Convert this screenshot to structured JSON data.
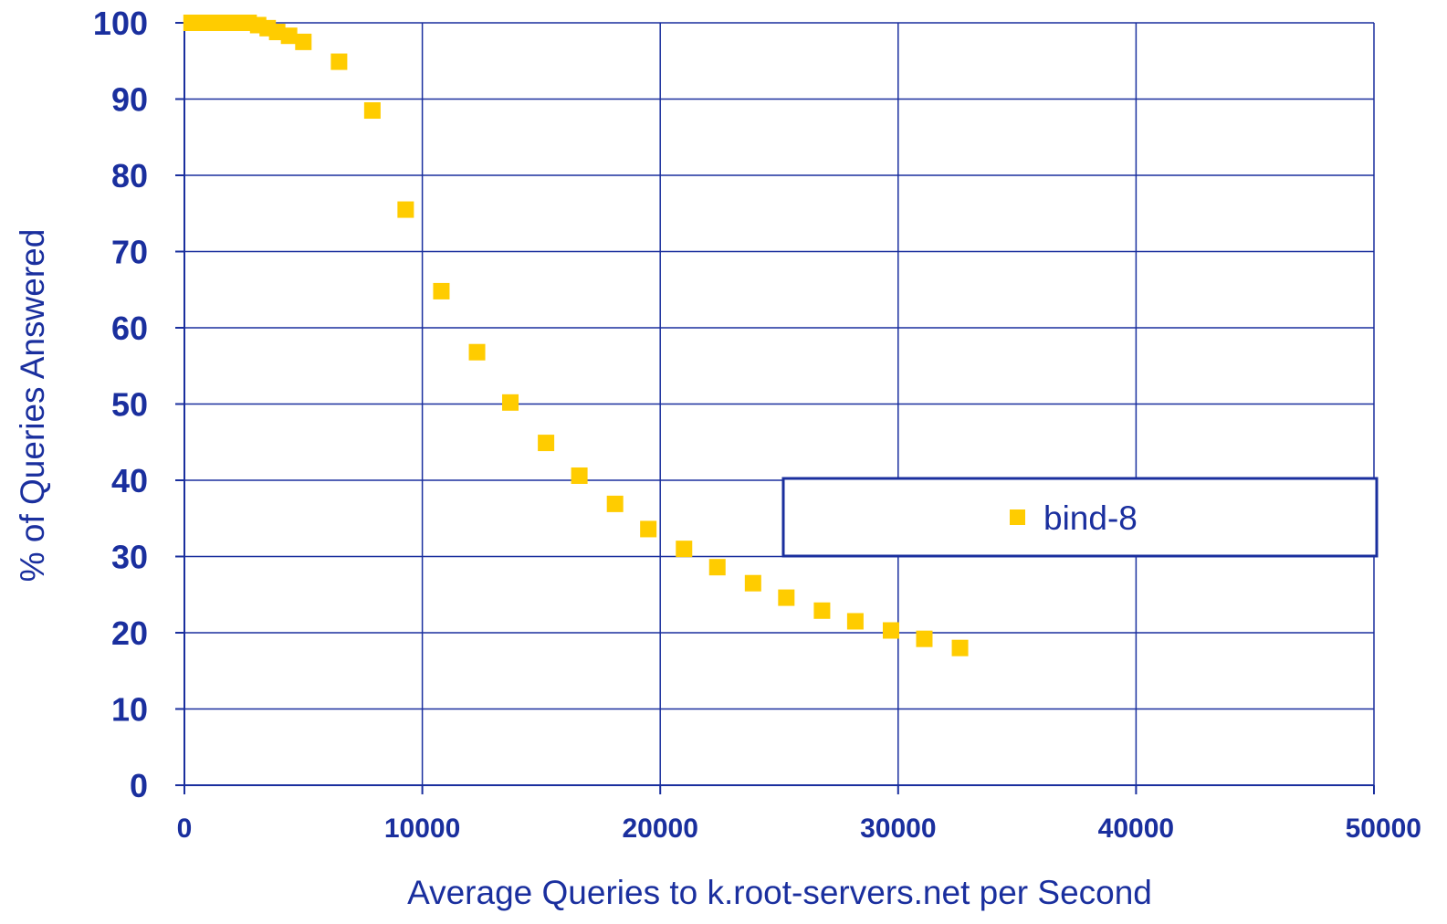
{
  "chart_data": {
    "type": "scatter",
    "title": "",
    "xlabel": "Average Queries to k.root-servers.net per Second",
    "ylabel": "% of Queries Answered",
    "xlim": [
      0,
      50000
    ],
    "ylim": [
      0,
      100
    ],
    "x_ticks": [
      "0",
      "10000",
      "20000",
      "30000",
      "40000",
      "50000"
    ],
    "y_ticks": [
      "0",
      "10",
      "20",
      "30",
      "40",
      "50",
      "60",
      "70",
      "80",
      "90",
      "100"
    ],
    "grid": true,
    "legend": {
      "placement": "center-right",
      "entries": [
        "bind-8"
      ]
    },
    "series": [
      {
        "name": "bind-8",
        "marker": "square",
        "color": "#FFCC00",
        "points": [
          {
            "x": 300,
            "y": 100
          },
          {
            "x": 600,
            "y": 100
          },
          {
            "x": 900,
            "y": 100
          },
          {
            "x": 1200,
            "y": 100
          },
          {
            "x": 1500,
            "y": 100
          },
          {
            "x": 1800,
            "y": 100
          },
          {
            "x": 2100,
            "y": 100
          },
          {
            "x": 2400,
            "y": 100
          },
          {
            "x": 2700,
            "y": 100
          },
          {
            "x": 3100,
            "y": 99.7
          },
          {
            "x": 3500,
            "y": 99.3
          },
          {
            "x": 3900,
            "y": 98.8
          },
          {
            "x": 4400,
            "y": 98.3
          },
          {
            "x": 5000,
            "y": 97.5
          },
          {
            "x": 6500,
            "y": 94.9
          },
          {
            "x": 7900,
            "y": 88.5
          },
          {
            "x": 9300,
            "y": 75.5
          },
          {
            "x": 10800,
            "y": 64.8
          },
          {
            "x": 12300,
            "y": 56.8
          },
          {
            "x": 13700,
            "y": 50.2
          },
          {
            "x": 15200,
            "y": 44.9
          },
          {
            "x": 16600,
            "y": 40.6
          },
          {
            "x": 18100,
            "y": 36.9
          },
          {
            "x": 19500,
            "y": 33.6
          },
          {
            "x": 21000,
            "y": 31.0
          },
          {
            "x": 22400,
            "y": 28.6
          },
          {
            "x": 23900,
            "y": 26.5
          },
          {
            "x": 25300,
            "y": 24.6
          },
          {
            "x": 26800,
            "y": 22.9
          },
          {
            "x": 28200,
            "y": 21.5
          },
          {
            "x": 29700,
            "y": 20.3
          },
          {
            "x": 31100,
            "y": 19.2
          },
          {
            "x": 32600,
            "y": 18.0
          }
        ]
      }
    ],
    "colors": {
      "axis": "#1A2F9E",
      "grid": "#1A2F9E",
      "text": "#1A2F9E",
      "marker": "#FFCC00",
      "background": "#FFFFFF"
    }
  }
}
